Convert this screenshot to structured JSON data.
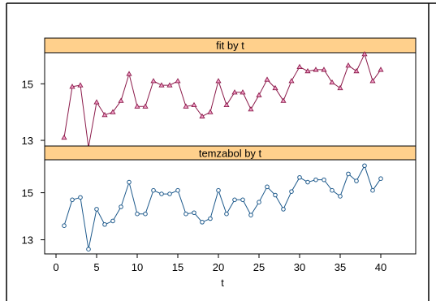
{
  "chart_data": {
    "type": "line",
    "xlabel": "t",
    "x_ticks": [
      0,
      5,
      10,
      15,
      20,
      25,
      30,
      35,
      40
    ],
    "panels": [
      {
        "title": "fit by t",
        "color": "#8b1a4a",
        "marker": "triangle",
        "marker_fill": "#f2a0c8",
        "line_style": "solid",
        "ylim": [
          12.8,
          16.1
        ],
        "y_ticks": [
          13,
          15
        ],
        "series": {
          "x": [
            1,
            2,
            3,
            4,
            5,
            6,
            7,
            8,
            9,
            10,
            11,
            12,
            13,
            14,
            15,
            16,
            17,
            18,
            19,
            20,
            21,
            22,
            23,
            24,
            25,
            26,
            27,
            28,
            29,
            30,
            31,
            32,
            33,
            34,
            35,
            36,
            37,
            38,
            39,
            40
          ],
          "y": [
            13.1,
            14.9,
            14.95,
            12.75,
            14.35,
            13.9,
            14.0,
            14.4,
            15.35,
            14.2,
            14.2,
            15.1,
            14.95,
            14.95,
            15.1,
            14.2,
            14.25,
            13.85,
            14.0,
            15.1,
            14.25,
            14.7,
            14.7,
            14.1,
            14.6,
            15.15,
            14.85,
            14.4,
            15.1,
            15.6,
            15.45,
            15.5,
            15.5,
            15.05,
            14.85,
            15.65,
            15.45,
            16.05,
            15.1,
            15.5
          ]
        }
      },
      {
        "title": "temzabol by t",
        "color": "#1e5a8c",
        "marker": "circle",
        "marker_fill": "#ffffff",
        "line_style": "solid",
        "ylim": [
          12.4,
          16.4
        ],
        "y_ticks": [
          13,
          15
        ],
        "series": {
          "x": [
            1,
            2,
            3,
            4,
            5,
            6,
            7,
            8,
            9,
            10,
            11,
            12,
            13,
            14,
            15,
            16,
            17,
            18,
            19,
            20,
            21,
            22,
            23,
            24,
            25,
            26,
            27,
            28,
            29,
            30,
            31,
            32,
            33,
            34,
            35,
            36,
            37,
            38,
            39,
            40
          ],
          "y": [
            13.6,
            14.7,
            14.8,
            12.6,
            14.3,
            13.65,
            13.8,
            14.4,
            15.45,
            14.1,
            14.1,
            15.1,
            14.95,
            14.95,
            15.1,
            14.1,
            14.15,
            13.75,
            13.9,
            15.1,
            14.1,
            14.7,
            14.7,
            14.05,
            14.6,
            15.25,
            14.9,
            14.3,
            15.05,
            15.65,
            15.45,
            15.55,
            15.55,
            15.1,
            14.85,
            15.8,
            15.5,
            16.15,
            15.1,
            15.6
          ]
        }
      }
    ]
  }
}
